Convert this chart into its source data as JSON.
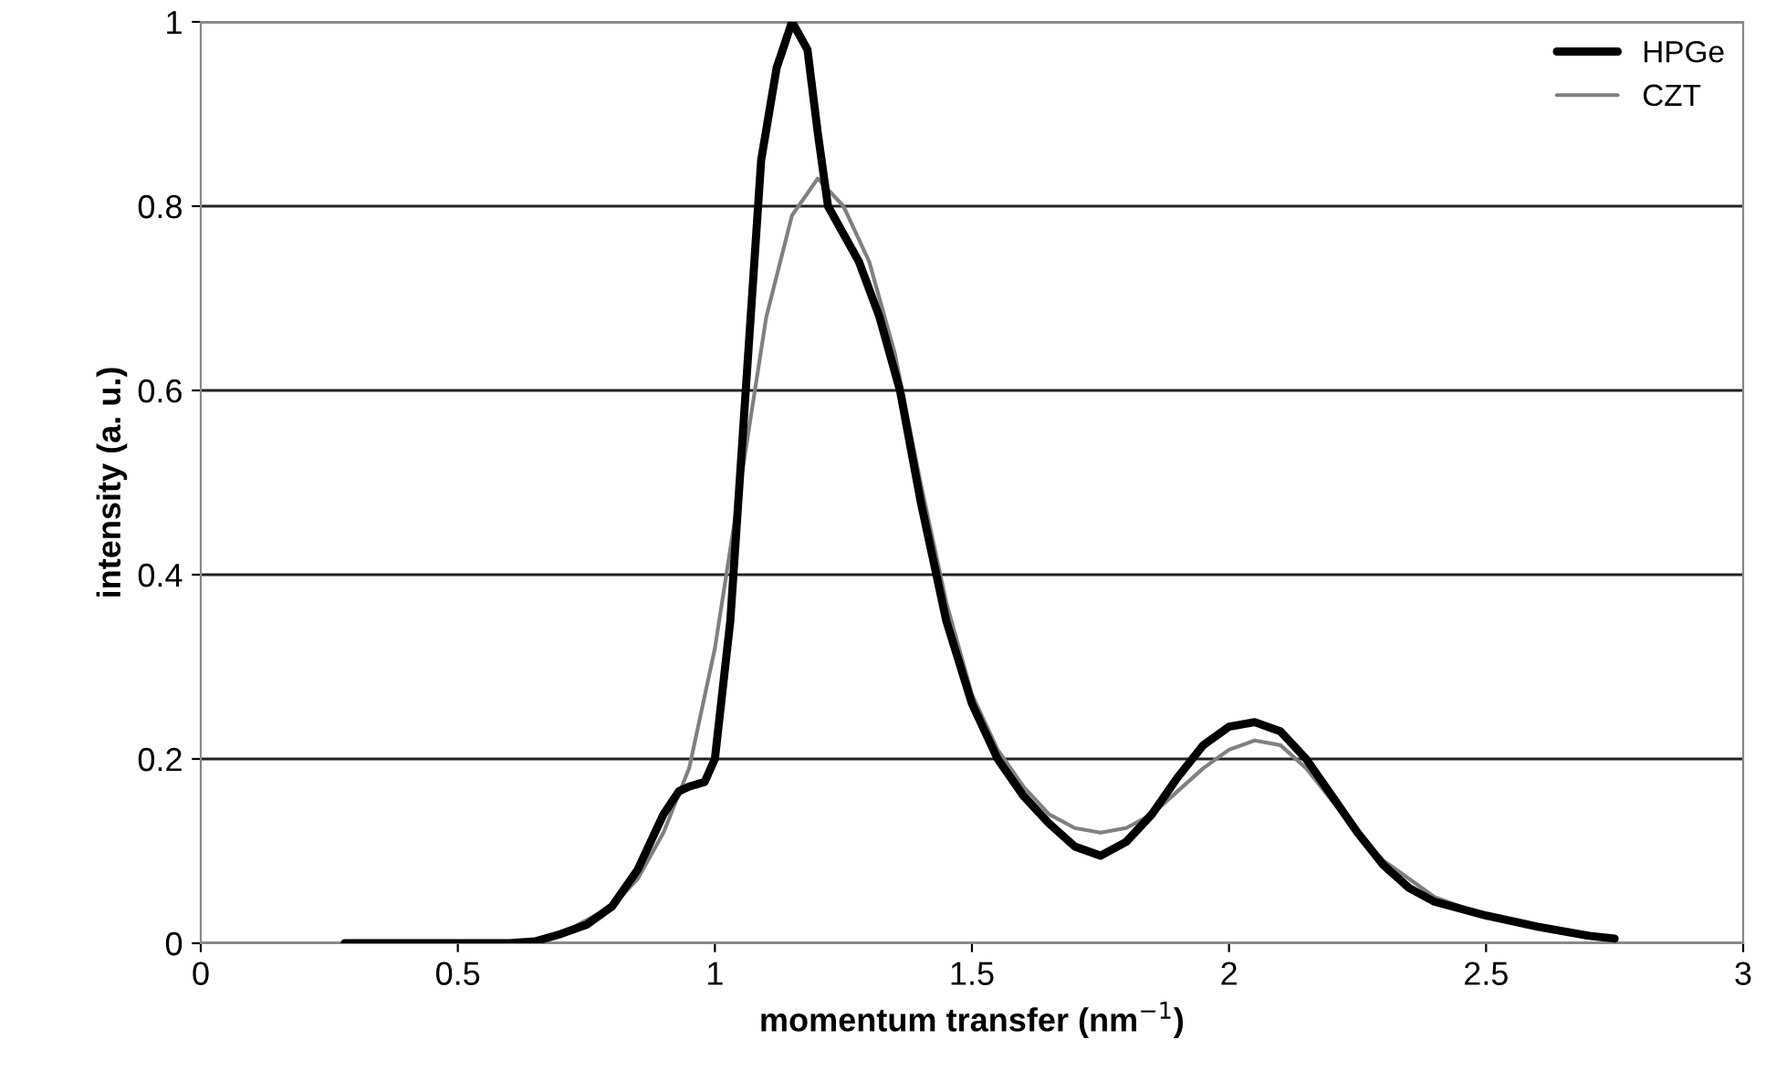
{
  "chart_data": {
    "type": "line",
    "xlabel": "momentum transfer (nm$^{−1}$)",
    "ylabel": "intensity (a. u.)",
    "xlim": [
      0,
      3
    ],
    "xticks": [
      0,
      0.5,
      1,
      1.5,
      2,
      2.5,
      3
    ],
    "ylim": [
      0,
      1
    ],
    "yticks": [
      0,
      0.2,
      0.4,
      0.6,
      0.8,
      1
    ],
    "grid": "y",
    "legend": "top right",
    "marker": "none",
    "line_style": "solid",
    "series": [
      {
        "name": "HPGe",
        "color": "#000000",
        "x": [
          0.28,
          0.6,
          0.65,
          0.7,
          0.75,
          0.8,
          0.85,
          0.9,
          0.93,
          0.95,
          0.98,
          1.0,
          1.03,
          1.06,
          1.09,
          1.12,
          1.15,
          1.18,
          1.2,
          1.22,
          1.25,
          1.28,
          1.32,
          1.36,
          1.4,
          1.45,
          1.5,
          1.55,
          1.6,
          1.65,
          1.7,
          1.75,
          1.8,
          1.85,
          1.9,
          1.95,
          2.0,
          2.05,
          2.1,
          2.15,
          2.2,
          2.25,
          2.3,
          2.35,
          2.4,
          2.5,
          2.6,
          2.7,
          2.75
        ],
        "values": [
          0,
          0,
          0.002,
          0.01,
          0.02,
          0.04,
          0.08,
          0.14,
          0.165,
          0.17,
          0.175,
          0.2,
          0.35,
          0.6,
          0.85,
          0.95,
          1.0,
          0.97,
          0.88,
          0.8,
          0.77,
          0.74,
          0.68,
          0.6,
          0.48,
          0.35,
          0.26,
          0.2,
          0.16,
          0.13,
          0.105,
          0.095,
          0.11,
          0.14,
          0.18,
          0.215,
          0.235,
          0.24,
          0.23,
          0.2,
          0.16,
          0.12,
          0.085,
          0.06,
          0.045,
          0.03,
          0.018,
          0.008,
          0.005
        ]
      },
      {
        "name": "CZT",
        "color": "#808080",
        "x": [
          0.28,
          0.6,
          0.65,
          0.7,
          0.8,
          0.85,
          0.9,
          0.95,
          1.0,
          1.05,
          1.1,
          1.15,
          1.2,
          1.25,
          1.3,
          1.35,
          1.4,
          1.45,
          1.5,
          1.55,
          1.6,
          1.65,
          1.7,
          1.75,
          1.8,
          1.85,
          1.9,
          1.95,
          2.0,
          2.05,
          2.1,
          2.15,
          2.2,
          2.25,
          2.3,
          2.4,
          2.5,
          2.6,
          2.7,
          2.75
        ],
        "values": [
          0,
          0,
          0.003,
          0.01,
          0.04,
          0.07,
          0.12,
          0.19,
          0.32,
          0.5,
          0.68,
          0.79,
          0.83,
          0.8,
          0.74,
          0.64,
          0.5,
          0.37,
          0.27,
          0.21,
          0.17,
          0.14,
          0.125,
          0.12,
          0.125,
          0.14,
          0.165,
          0.19,
          0.21,
          0.22,
          0.215,
          0.19,
          0.155,
          0.12,
          0.09,
          0.05,
          0.03,
          0.018,
          0.01,
          0.006
        ]
      }
    ]
  }
}
